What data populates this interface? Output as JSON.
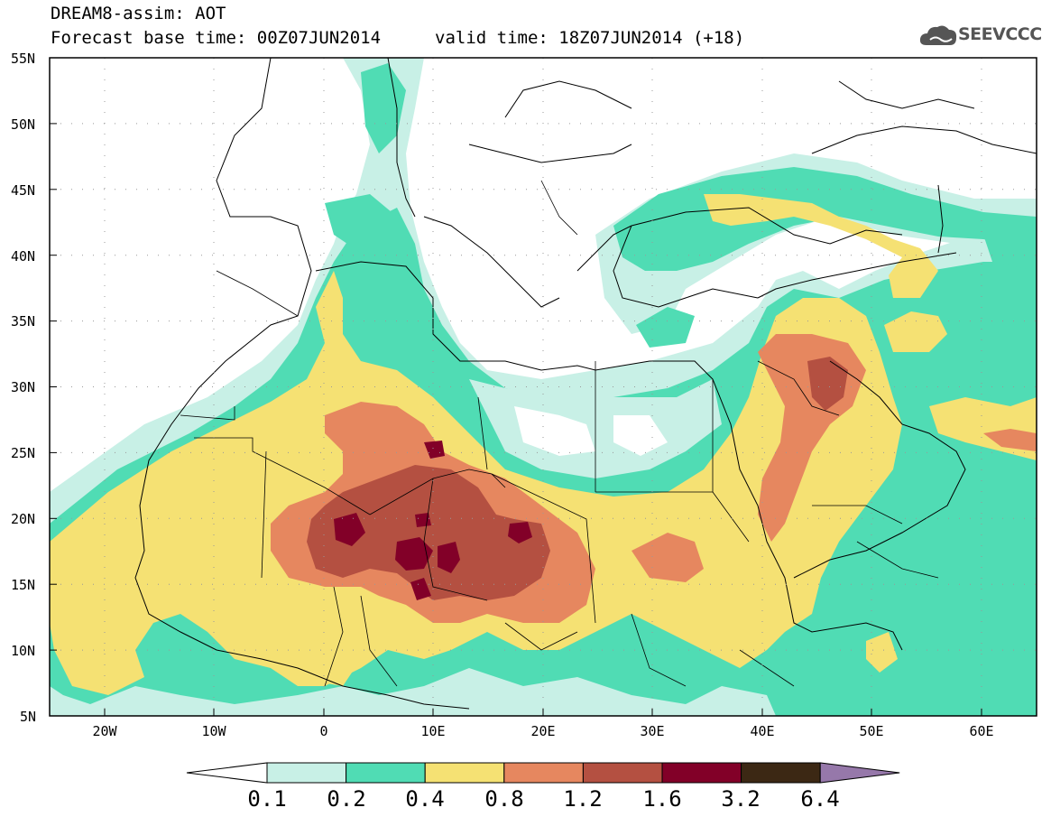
{
  "header": {
    "title_line1": "DREAM8-assim: AOT",
    "title_line2": "Forecast base time: 00Z07JUN2014",
    "valid_time": "valid time: 18Z07JUN2014 (+18)"
  },
  "logo": {
    "text": "SEEVCCC",
    "icon": "cloud-logo-icon",
    "color": "#555555"
  },
  "map": {
    "lat_labels": [
      "55N",
      "50N",
      "45N",
      "40N",
      "35N",
      "30N",
      "25N",
      "20N",
      "15N",
      "10N",
      "5N"
    ],
    "lon_labels": [
      "20W",
      "10W",
      "0",
      "10E",
      "20E",
      "30E",
      "40E",
      "50E",
      "60E"
    ],
    "extent": {
      "lon_min": -25,
      "lon_max": 65,
      "lat_min": 5,
      "lat_max": 55
    }
  },
  "colorbar": {
    "labels": [
      "0.1",
      "0.2",
      "0.4",
      "0.8",
      "1.2",
      "1.6",
      "3.2",
      "6.4"
    ],
    "colors": [
      "#ffffff",
      "#c8f0e6",
      "#50dcb4",
      "#f5e173",
      "#e6875f",
      "#b45041",
      "#820028",
      "#3c2814",
      "#9678aa"
    ]
  }
}
